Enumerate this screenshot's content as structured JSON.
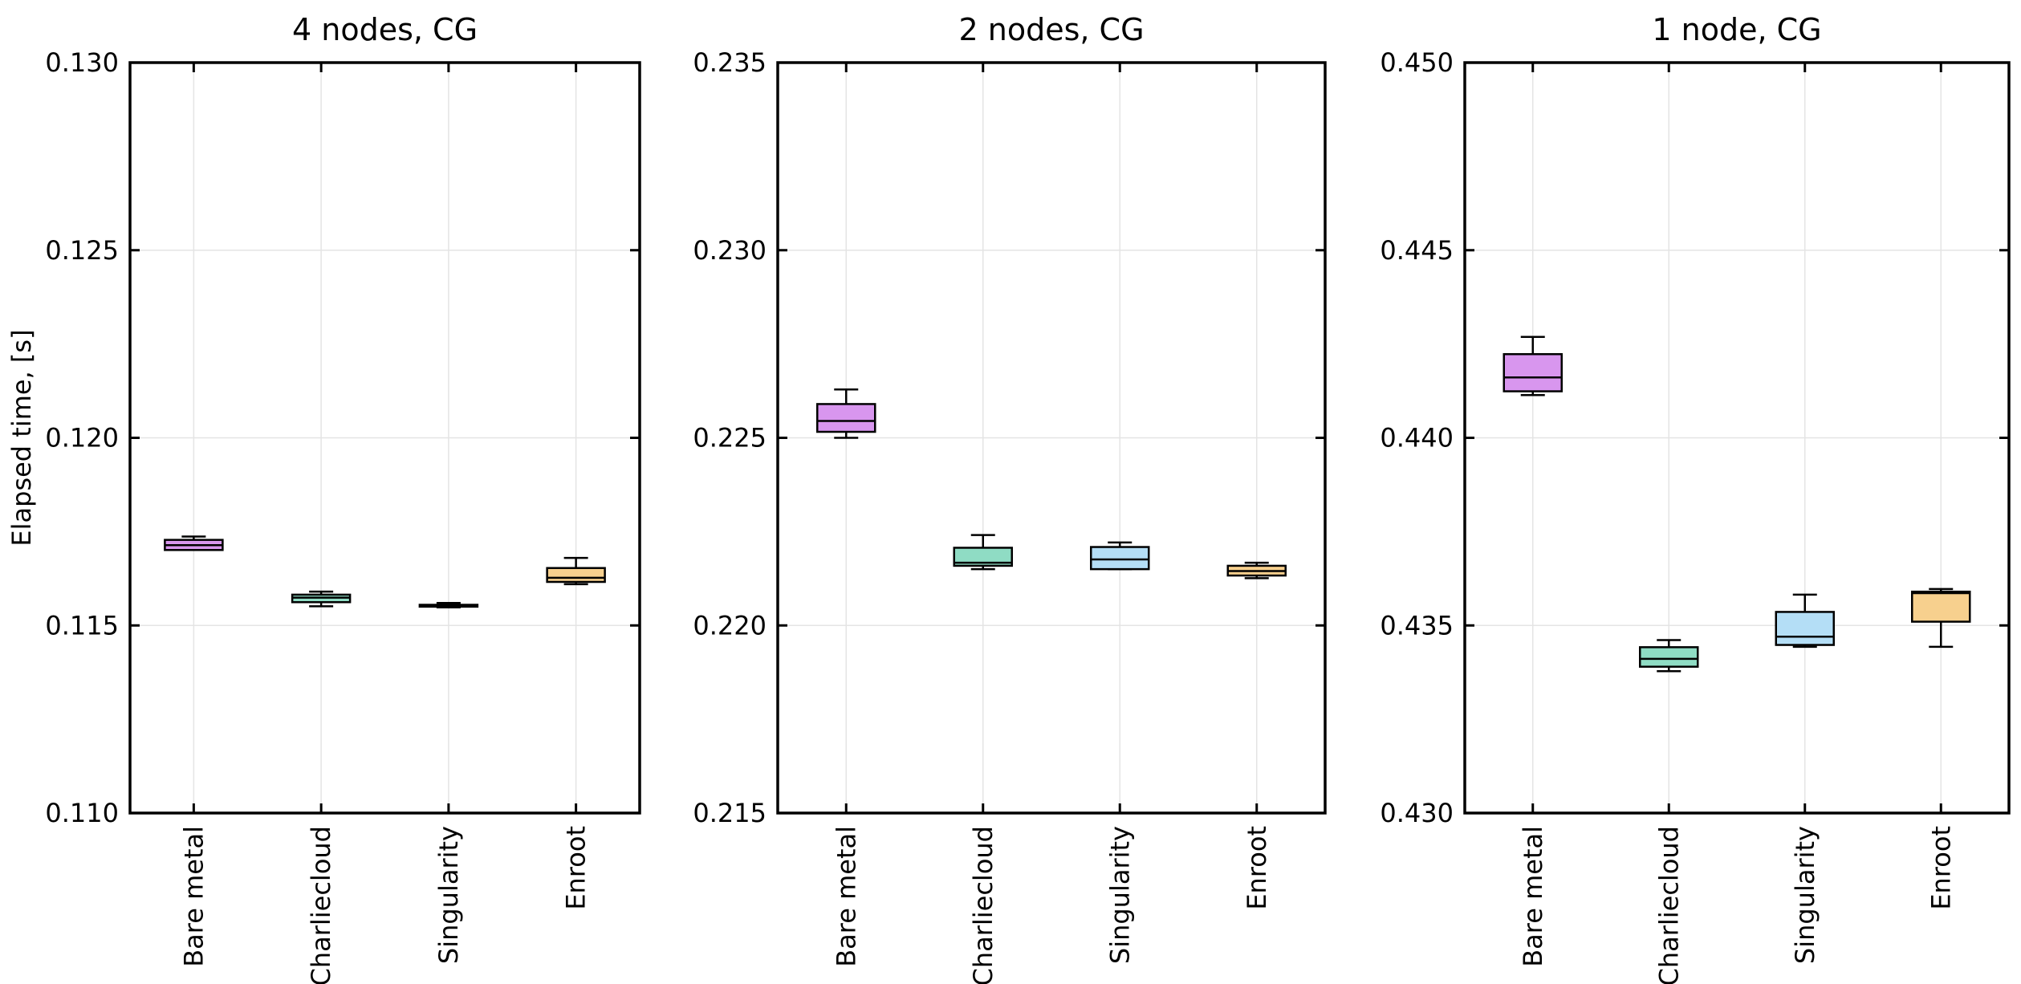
{
  "colors": {
    "Bare metal": "#d896ee",
    "Charliecloud": "#8fdcc4",
    "Singularity": "#b4def6",
    "Enroot": "#f7d08e",
    "grid": "#e4e4e4",
    "frame": "#000000"
  },
  "chart_data": [
    {
      "type": "box",
      "title": "4 nodes, CG",
      "ylabel": "Elapsed time, [s]",
      "ylim": [
        0.11,
        0.13
      ],
      "yticks": [
        "0.110",
        "0.115",
        "0.120",
        "0.125",
        "0.130"
      ],
      "categories": [
        "Bare metal",
        "Charliecloud",
        "Singularity",
        "Enroot"
      ],
      "grid": true,
      "boxes": [
        {
          "category": "Bare metal",
          "whisker_low": 0.11701,
          "q1": 0.11701,
          "median": 0.11714,
          "q3": 0.11728,
          "whisker_high": 0.11737
        },
        {
          "category": "Charliecloud",
          "whisker_low": 0.11551,
          "q1": 0.11562,
          "median": 0.11574,
          "q3": 0.11582,
          "whisker_high": 0.1159
        },
        {
          "category": "Singularity",
          "whisker_low": 0.11548,
          "q1": 0.1155,
          "median": 0.11552,
          "q3": 0.11555,
          "whisker_high": 0.1156
        },
        {
          "category": "Enroot",
          "whisker_low": 0.1161,
          "q1": 0.11616,
          "median": 0.11627,
          "q3": 0.11653,
          "whisker_high": 0.1168
        }
      ]
    },
    {
      "type": "box",
      "title": "2 nodes, CG",
      "ylabel": "",
      "ylim": [
        0.215,
        0.235
      ],
      "yticks": [
        "0.215",
        "0.220",
        "0.225",
        "0.230",
        "0.235"
      ],
      "categories": [
        "Bare metal",
        "Charliecloud",
        "Singularity",
        "Enroot"
      ],
      "grid": true,
      "boxes": [
        {
          "category": "Bare metal",
          "whisker_low": 0.225,
          "q1": 0.22516,
          "median": 0.22545,
          "q3": 0.2259,
          "whisker_high": 0.22629
        },
        {
          "category": "Charliecloud",
          "whisker_low": 0.2215,
          "q1": 0.22159,
          "median": 0.22167,
          "q3": 0.22207,
          "whisker_high": 0.22241
        },
        {
          "category": "Singularity",
          "whisker_low": 0.2215,
          "q1": 0.2215,
          "median": 0.22176,
          "q3": 0.22209,
          "whisker_high": 0.22221
        },
        {
          "category": "Enroot",
          "whisker_low": 0.22126,
          "q1": 0.22133,
          "median": 0.22145,
          "q3": 0.22159,
          "whisker_high": 0.22167
        }
      ]
    },
    {
      "type": "box",
      "title": "1 node, CG",
      "ylabel": "",
      "ylim": [
        0.43,
        0.45
      ],
      "yticks": [
        "0.430",
        "0.435",
        "0.440",
        "0.445",
        "0.450"
      ],
      "categories": [
        "Bare metal",
        "Charliecloud",
        "Singularity",
        "Enroot"
      ],
      "grid": true,
      "boxes": [
        {
          "category": "Bare metal",
          "whisker_low": 0.44114,
          "q1": 0.44124,
          "median": 0.44161,
          "q3": 0.44223,
          "whisker_high": 0.44269
        },
        {
          "category": "Charliecloud",
          "whisker_low": 0.43378,
          "q1": 0.4339,
          "median": 0.43411,
          "q3": 0.43442,
          "whisker_high": 0.43461
        },
        {
          "category": "Singularity",
          "whisker_low": 0.43443,
          "q1": 0.43448,
          "median": 0.4347,
          "q3": 0.43536,
          "whisker_high": 0.43582
        },
        {
          "category": "Enroot",
          "whisker_low": 0.43443,
          "q1": 0.4351,
          "median": 0.43586,
          "q3": 0.4359,
          "whisker_high": 0.43597
        }
      ]
    }
  ]
}
